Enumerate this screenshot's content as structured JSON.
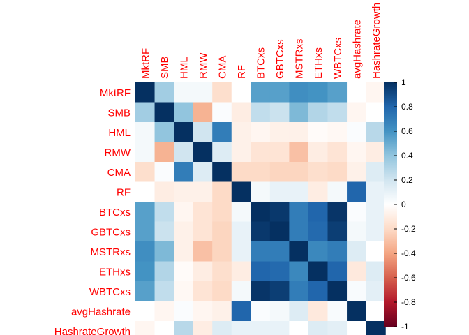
{
  "chart_data": {
    "type": "heatmap",
    "title": "",
    "row_labels": [
      "MktRF",
      "SMB",
      "HML",
      "RMW",
      "CMA",
      "RF",
      "BTCxs",
      "GBTCxs",
      "MSTRxs",
      "ETHxs",
      "WBTCxs",
      "avgHashrate",
      "HashrateGrowth"
    ],
    "col_labels": [
      "MktRF",
      "SMB",
      "HML",
      "RMW",
      "CMA",
      "RF",
      "BTCxs",
      "GBTCxs",
      "MSTRxs",
      "ETHxs",
      "WBTCxs",
      "avgHashrate",
      "HashrateGrowth"
    ],
    "values": [
      [
        1.0,
        0.35,
        0.05,
        0.05,
        -0.18,
        0.0,
        0.55,
        0.55,
        0.62,
        0.6,
        0.55,
        0.0,
        -0.05
      ],
      [
        0.35,
        1.0,
        0.4,
        -0.35,
        0.02,
        -0.1,
        0.25,
        0.22,
        0.45,
        0.3,
        0.25,
        -0.05,
        0.0
      ],
      [
        0.05,
        0.4,
        1.0,
        0.2,
        0.7,
        -0.08,
        -0.05,
        -0.08,
        -0.08,
        -0.02,
        -0.04,
        0.02,
        0.28
      ],
      [
        0.05,
        -0.35,
        0.2,
        1.0,
        0.15,
        -0.08,
        -0.15,
        -0.15,
        -0.3,
        -0.1,
        -0.15,
        -0.05,
        -0.1
      ],
      [
        -0.18,
        0.02,
        0.7,
        0.15,
        1.0,
        -0.2,
        -0.2,
        -0.22,
        -0.22,
        -0.18,
        -0.2,
        -0.08,
        0.15
      ],
      [
        0.0,
        -0.1,
        -0.08,
        -0.08,
        -0.2,
        1.0,
        0.05,
        0.1,
        0.1,
        -0.1,
        0.05,
        0.8,
        0.1
      ],
      [
        0.55,
        0.25,
        -0.05,
        -0.15,
        -0.2,
        0.05,
        1.0,
        0.97,
        0.7,
        0.8,
        0.98,
        0.02,
        0.1
      ],
      [
        0.55,
        0.22,
        -0.08,
        -0.15,
        -0.22,
        0.1,
        0.97,
        1.0,
        0.7,
        0.78,
        0.95,
        0.05,
        0.1
      ],
      [
        0.62,
        0.45,
        -0.08,
        -0.3,
        -0.22,
        0.1,
        0.7,
        0.7,
        1.0,
        0.65,
        0.7,
        0.15,
        0.0
      ],
      [
        0.6,
        0.3,
        -0.02,
        -0.1,
        -0.18,
        -0.1,
        0.8,
        0.78,
        0.65,
        1.0,
        0.8,
        -0.12,
        0.15
      ],
      [
        0.55,
        0.25,
        -0.04,
        -0.15,
        -0.2,
        0.05,
        0.98,
        0.95,
        0.7,
        0.8,
        1.0,
        0.03,
        0.12
      ],
      [
        0.0,
        -0.05,
        0.02,
        -0.05,
        -0.08,
        0.8,
        0.02,
        0.05,
        0.15,
        -0.12,
        0.03,
        1.0,
        0.0
      ],
      [
        -0.05,
        0.0,
        0.28,
        -0.1,
        0.15,
        0.1,
        0.1,
        0.1,
        0.0,
        0.15,
        0.12,
        0.0,
        1.0
      ]
    ],
    "colorbar": {
      "min": -1,
      "max": 1,
      "ticks": [
        "1",
        "0.8",
        "0.6",
        "0.4",
        "0.2",
        "0",
        "-0.2",
        "-0.4",
        "-0.6",
        "-0.8",
        "-1"
      ],
      "tick_values": [
        1,
        0.8,
        0.6,
        0.4,
        0.2,
        0,
        -0.2,
        -0.4,
        -0.6,
        -0.8,
        -1
      ]
    },
    "palette": [
      "#67001F",
      "#B2182B",
      "#D6604D",
      "#F4A582",
      "#FDDBC7",
      "#FFFFFF",
      "#D1E5F0",
      "#92C5DE",
      "#4393C3",
      "#2166AC",
      "#053061"
    ],
    "label_color": "#FF0000",
    "grid": false
  }
}
